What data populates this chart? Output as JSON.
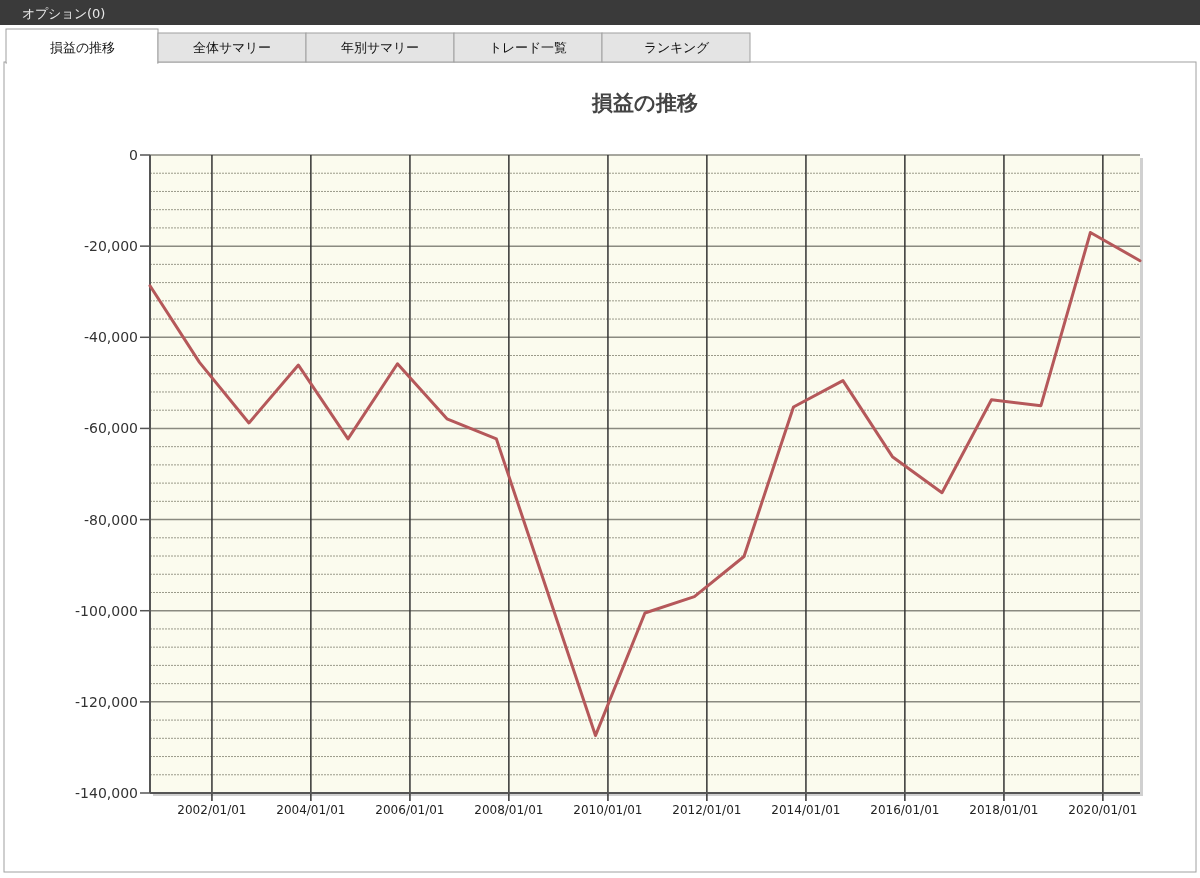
{
  "chart_data": {
    "type": "line",
    "title": "損益の推移",
    "annotations": [
      "オプション(0)",
      "損益の推移",
      "全体サマリー",
      "年別サマリー",
      "トレード一覧",
      "ランキング"
    ],
    "x": [
      "2000-10-01",
      "2001-10-01",
      "2002-10-01",
      "2003-10-01",
      "2004-10-01",
      "2005-10-01",
      "2006-10-01",
      "2007-10-01",
      "2009-10-01",
      "2010-10-01",
      "2011-10-01",
      "2012-10-01",
      "2013-10-01",
      "2014-10-01",
      "2015-10-01",
      "2016-10-01",
      "2017-10-01",
      "2018-10-01",
      "2019-10-01",
      "2020-10-01"
    ],
    "series": [
      {
        "color": "#b5585a",
        "values": [
          -28700,
          -45500,
          -58800,
          -46100,
          -62300,
          -45800,
          -57900,
          -62300,
          -127400,
          -100500,
          -96900,
          -88100,
          -55300,
          -49500,
          -66200,
          -74100,
          -53700,
          -55000,
          -17000,
          -23200
        ]
      }
    ],
    "xlim": [
      "2000-10-01",
      "2020-10-01"
    ],
    "xticks": [
      {
        "value": "2002-01-01",
        "label": "2002/01/01"
      },
      {
        "value": "2004-01-01",
        "label": "2004/01/01"
      },
      {
        "value": "2006-01-01",
        "label": "2006/01/01"
      },
      {
        "value": "2008-01-01",
        "label": "2008/01/01"
      },
      {
        "value": "2010-01-01",
        "label": "2010/01/01"
      },
      {
        "value": "2012-01-01",
        "label": "2012/01/01"
      },
      {
        "value": "2014-01-01",
        "label": "2014/01/01"
      },
      {
        "value": "2016-01-01",
        "label": "2016/01/01"
      },
      {
        "value": "2018-01-01",
        "label": "2018/01/01"
      },
      {
        "value": "2020-01-01",
        "label": "2020/01/01"
      }
    ],
    "ylim": [
      -140000,
      0
    ],
    "yticks": [
      {
        "value": 0,
        "label": "0"
      },
      {
        "value": -4000,
        "label": null
      },
      {
        "value": -8000,
        "label": null
      },
      {
        "value": -12000,
        "label": null
      },
      {
        "value": -16000,
        "label": null
      },
      {
        "value": -20000,
        "label": "-20,000"
      },
      {
        "value": -24000,
        "label": null
      },
      {
        "value": -28000,
        "label": null
      },
      {
        "value": -32000,
        "label": null
      },
      {
        "value": -36000,
        "label": null
      },
      {
        "value": -40000,
        "label": "-40,000"
      },
      {
        "value": -44000,
        "label": null
      },
      {
        "value": -48000,
        "label": null
      },
      {
        "value": -52000,
        "label": null
      },
      {
        "value": -56000,
        "label": null
      },
      {
        "value": -60000,
        "label": "-60,000"
      },
      {
        "value": -64000,
        "label": null
      },
      {
        "value": -68000,
        "label": null
      },
      {
        "value": -72000,
        "label": null
      },
      {
        "value": -76000,
        "label": null
      },
      {
        "value": -80000,
        "label": "-80,000"
      },
      {
        "value": -84000,
        "label": null
      },
      {
        "value": -88000,
        "label": null
      },
      {
        "value": -92000,
        "label": null
      },
      {
        "value": -96000,
        "label": null
      },
      {
        "value": -100000,
        "label": "-100,000"
      },
      {
        "value": -104000,
        "label": null
      },
      {
        "value": -108000,
        "label": null
      },
      {
        "value": -112000,
        "label": null
      },
      {
        "value": -116000,
        "label": null
      },
      {
        "value": -120000,
        "label": "-120,000"
      },
      {
        "value": -124000,
        "label": null
      },
      {
        "value": -128000,
        "label": null
      },
      {
        "value": -132000,
        "label": null
      },
      {
        "value": -136000,
        "label": null
      },
      {
        "value": -140000,
        "label": "-140,000"
      }
    ],
    "grid": true,
    "marker": "none",
    "line_style": "solid"
  }
}
